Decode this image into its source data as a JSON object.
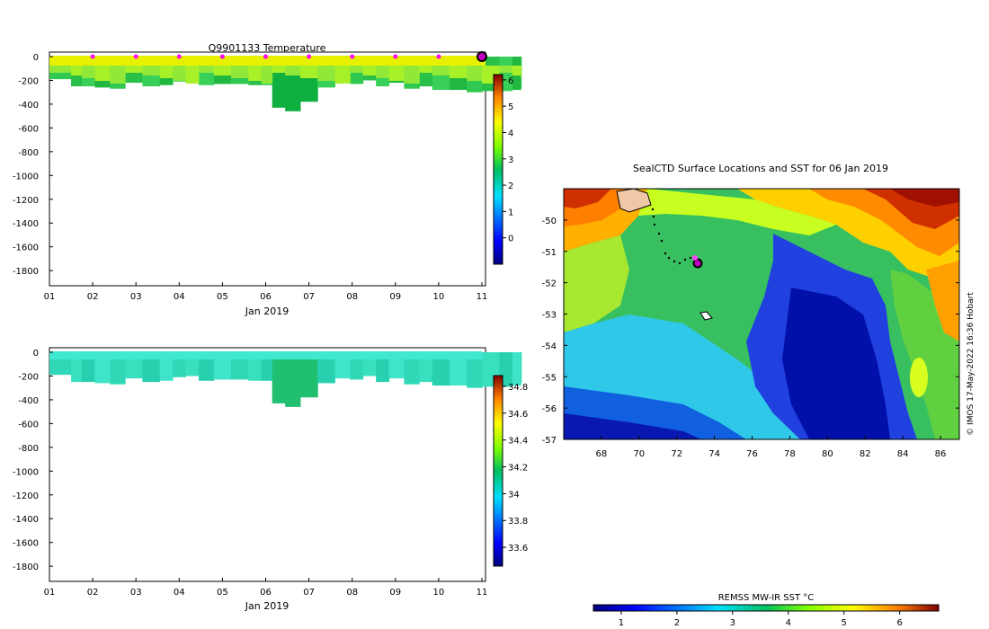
{
  "chart_data": [
    {
      "type": "heatmap",
      "title": "Q9901133  Temperature",
      "xlabel": "Jan 2019",
      "x_ticks": [
        "01",
        "02",
        "03",
        "04",
        "05",
        "06",
        "07",
        "08",
        "09",
        "10",
        "11"
      ],
      "y_ticks": [
        "0",
        "-200",
        "-400",
        "-600",
        "-800",
        "-1000",
        "-1200",
        "-1400",
        "-1600",
        "-1800"
      ],
      "ylim": [
        -1900,
        0
      ],
      "colorbar": {
        "ticks": [
          "6",
          "5",
          "4",
          "3",
          "2",
          "1",
          "0"
        ],
        "range": [
          -1,
          6.2
        ]
      },
      "profile_times_days": [
        0.4,
        0.6,
        0.9,
        1.2,
        1.6,
        1.9,
        2.4,
        2.7,
        3.0,
        3.3,
        3.6,
        4.0,
        4.4,
        4.8,
        5.0,
        5.3,
        5.6,
        6.0,
        6.4,
        6.8,
        7.1,
        7.4,
        7.7,
        8.0,
        8.4,
        8.7,
        9.0,
        9.5,
        9.8,
        10.2,
        10.6,
        10.8,
        11.0
      ],
      "profile_depths_m": [
        190,
        250,
        250,
        260,
        270,
        220,
        250,
        240,
        210,
        200,
        240,
        230,
        230,
        240,
        240,
        430,
        460,
        380,
        260,
        220,
        230,
        200,
        250,
        220,
        270,
        250,
        280,
        280,
        300,
        290,
        290,
        280,
        260
      ],
      "surface_marker_days": [
        1,
        2,
        3,
        4,
        5,
        6,
        7,
        8,
        9,
        10
      ],
      "latest_marker_day": 10
    },
    {
      "type": "heatmap",
      "title": "",
      "xlabel": "Jan 2019",
      "x_ticks": [
        "01",
        "02",
        "03",
        "04",
        "05",
        "06",
        "07",
        "08",
        "09",
        "10",
        "11"
      ],
      "y_ticks": [
        "0",
        "-200",
        "-400",
        "-600",
        "-800",
        "-1000",
        "-1200",
        "-1400",
        "-1600",
        "-1800"
      ],
      "ylim": [
        -1900,
        0
      ],
      "colorbar": {
        "ticks": [
          "34.8",
          "34.6",
          "34.4",
          "34.2",
          "34",
          "33.8",
          "33.6"
        ],
        "range": [
          33.46,
          34.88
        ]
      }
    },
    {
      "type": "heatmap",
      "title": "SealCTD Surface Locations and SST for 06 Jan 2019",
      "x_ticks": [
        "68",
        "70",
        "72",
        "74",
        "76",
        "78",
        "80",
        "82",
        "84",
        "86"
      ],
      "y_ticks": [
        "-50",
        "-51",
        "-52",
        "-53",
        "-54",
        "-55",
        "-56",
        "-57"
      ],
      "xlim": [
        66,
        87
      ],
      "ylim": [
        -57,
        -49
      ]
    },
    {
      "type": "colorbar",
      "title": "REMSS MW-IR SST °C",
      "ticks": [
        "1",
        "2",
        "3",
        "4",
        "5",
        "6"
      ],
      "range": [
        0.5,
        6.7
      ]
    }
  ],
  "credit": "© IMOS 17-May-2022 16:36 Hobart"
}
